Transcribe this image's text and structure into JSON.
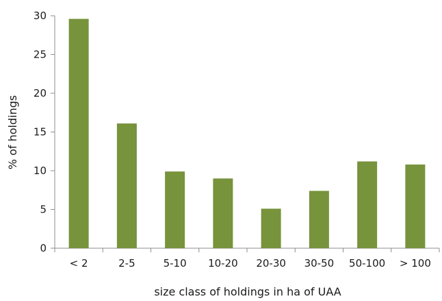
{
  "chart_data": {
    "type": "bar",
    "categories": [
      "< 2",
      "2-5",
      "5-10",
      "10-20",
      "20-30",
      "30-50",
      "50-100",
      "> 100"
    ],
    "values": [
      29.6,
      16.1,
      9.9,
      9.0,
      5.1,
      7.4,
      11.2,
      10.8
    ],
    "title": "",
    "xlabel": "size class of holdings in ha of UAA",
    "ylabel": "% of holdings",
    "ylim": [
      0,
      30
    ],
    "yticks": [
      0,
      5,
      10,
      15,
      20,
      25,
      30
    ],
    "grid": false,
    "legend": "none",
    "bar_color": "#77933c",
    "axis_color": "#8c8c8c"
  }
}
